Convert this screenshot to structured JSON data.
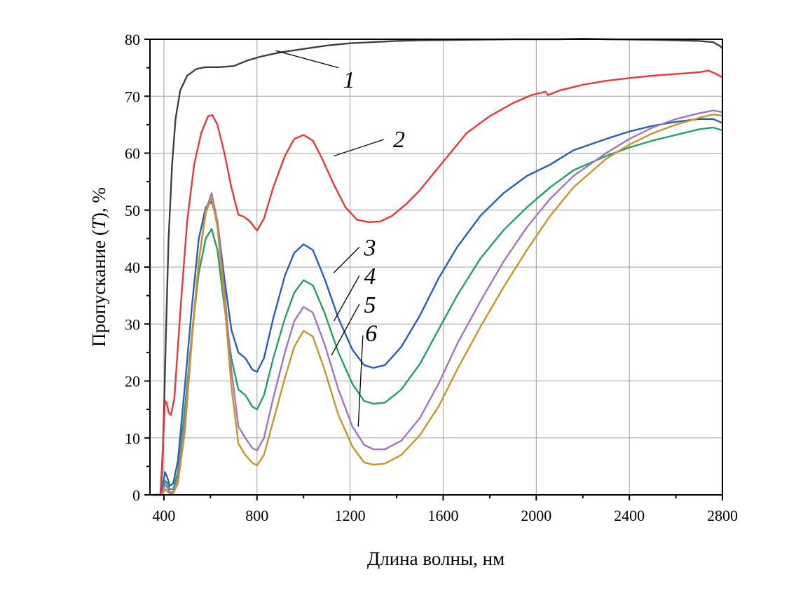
{
  "chart_data": {
    "type": "line",
    "xlabel": "Длина волны, нм",
    "ylabel_parts": [
      "Пропускание (",
      "T",
      "), %"
    ],
    "xlim": [
      340,
      2800
    ],
    "ylim": [
      0,
      80
    ],
    "xticks": [
      400,
      800,
      1200,
      1600,
      2000,
      2400,
      2800
    ],
    "xtick_labels": [
      "400",
      "800",
      "1200",
      "1600",
      "2000",
      "2400",
      "2800"
    ],
    "yticks": [
      0,
      10,
      20,
      30,
      40,
      50,
      60,
      70,
      80
    ],
    "ytick_labels": [
      "0",
      "10",
      "20",
      "30",
      "40",
      "50",
      "60",
      "70",
      "80"
    ],
    "grid": true,
    "series": [
      {
        "name": "1",
        "color": "#404040",
        "label_at": [
          1170,
          73
        ],
        "leader": [
          [
            880,
            78
          ],
          [
            1150,
            75
          ]
        ],
        "points": [
          [
            352,
            0
          ],
          [
            385,
            0
          ],
          [
            392,
            4
          ],
          [
            400,
            14
          ],
          [
            410,
            30
          ],
          [
            420,
            45
          ],
          [
            435,
            58
          ],
          [
            450,
            66
          ],
          [
            470,
            71
          ],
          [
            500,
            73.6
          ],
          [
            540,
            74.8
          ],
          [
            580,
            75.1
          ],
          [
            640,
            75.1
          ],
          [
            700,
            75.3
          ],
          [
            760,
            76.3
          ],
          [
            820,
            77
          ],
          [
            900,
            77.7
          ],
          [
            1000,
            78.3
          ],
          [
            1100,
            78.9
          ],
          [
            1200,
            79.3
          ],
          [
            1300,
            79.5
          ],
          [
            1400,
            79.7
          ],
          [
            1500,
            79.8
          ],
          [
            1700,
            79.9
          ],
          [
            1900,
            80
          ],
          [
            2100,
            80
          ],
          [
            2200,
            80.1
          ],
          [
            2300,
            80
          ],
          [
            2500,
            79.9
          ],
          [
            2600,
            79.8
          ],
          [
            2700,
            79.7
          ],
          [
            2760,
            79.5
          ],
          [
            2790,
            78.8
          ],
          [
            2800,
            78.4
          ]
        ]
      },
      {
        "name": "2",
        "color": "#e8383b",
        "label_at": [
          1385,
          62.5
        ],
        "leader": [
          [
            1130,
            59.5
          ],
          [
            1345,
            62.4
          ]
        ],
        "points": [
          [
            352,
            0
          ],
          [
            385,
            0
          ],
          [
            395,
            8
          ],
          [
            405,
            16.5
          ],
          [
            412,
            16.2
          ],
          [
            420,
            14.5
          ],
          [
            430,
            14
          ],
          [
            445,
            17
          ],
          [
            470,
            32
          ],
          [
            500,
            48
          ],
          [
            530,
            58
          ],
          [
            560,
            63.5
          ],
          [
            590,
            66.5
          ],
          [
            608,
            66.7
          ],
          [
            630,
            65
          ],
          [
            660,
            60
          ],
          [
            690,
            54
          ],
          [
            720,
            49.2
          ],
          [
            745,
            48.8
          ],
          [
            770,
            48
          ],
          [
            800,
            46.4
          ],
          [
            830,
            48.5
          ],
          [
            870,
            54
          ],
          [
            920,
            59.5
          ],
          [
            960,
            62.5
          ],
          [
            1000,
            63.2
          ],
          [
            1040,
            62.2
          ],
          [
            1080,
            59
          ],
          [
            1130,
            54.5
          ],
          [
            1180,
            50.5
          ],
          [
            1230,
            48.3
          ],
          [
            1280,
            47.9
          ],
          [
            1330,
            48
          ],
          [
            1380,
            49
          ],
          [
            1440,
            51
          ],
          [
            1500,
            53.5
          ],
          [
            1560,
            56.5
          ],
          [
            1620,
            59.5
          ],
          [
            1700,
            63.5
          ],
          [
            1800,
            66.5
          ],
          [
            1900,
            68.8
          ],
          [
            1980,
            70.2
          ],
          [
            2040,
            70.8
          ],
          [
            2050,
            70.2
          ],
          [
            2100,
            71
          ],
          [
            2200,
            72
          ],
          [
            2300,
            72.7
          ],
          [
            2400,
            73.2
          ],
          [
            2500,
            73.6
          ],
          [
            2600,
            73.9
          ],
          [
            2700,
            74.2
          ],
          [
            2740,
            74.5
          ],
          [
            2770,
            74
          ],
          [
            2800,
            73.3
          ]
        ]
      },
      {
        "name": "3",
        "color": "#2a5fb2",
        "label_at": [
          1260,
          43.5
        ],
        "leader": [
          [
            1130,
            39
          ],
          [
            1240,
            43.5
          ]
        ],
        "points": [
          [
            352,
            0
          ],
          [
            390,
            0
          ],
          [
            398,
            2.5
          ],
          [
            405,
            4
          ],
          [
            415,
            3
          ],
          [
            425,
            1.6
          ],
          [
            440,
            2
          ],
          [
            460,
            6
          ],
          [
            490,
            19
          ],
          [
            520,
            33
          ],
          [
            550,
            45
          ],
          [
            580,
            50.5
          ],
          [
            605,
            51.5
          ],
          [
            630,
            48
          ],
          [
            660,
            38
          ],
          [
            690,
            29
          ],
          [
            720,
            25
          ],
          [
            750,
            24
          ],
          [
            780,
            22
          ],
          [
            800,
            21.6
          ],
          [
            830,
            24
          ],
          [
            870,
            31
          ],
          [
            920,
            38.5
          ],
          [
            960,
            42.5
          ],
          [
            1000,
            44
          ],
          [
            1040,
            43
          ],
          [
            1090,
            38
          ],
          [
            1150,
            31
          ],
          [
            1210,
            25.5
          ],
          [
            1260,
            22.8
          ],
          [
            1300,
            22.3
          ],
          [
            1350,
            22.8
          ],
          [
            1420,
            26
          ],
          [
            1500,
            31.5
          ],
          [
            1580,
            38
          ],
          [
            1660,
            43.5
          ],
          [
            1760,
            49
          ],
          [
            1860,
            53
          ],
          [
            1960,
            56
          ],
          [
            2060,
            58
          ],
          [
            2160,
            60.5
          ],
          [
            2300,
            62.5
          ],
          [
            2400,
            63.8
          ],
          [
            2500,
            64.8
          ],
          [
            2600,
            65.5
          ],
          [
            2700,
            66
          ],
          [
            2760,
            66
          ],
          [
            2800,
            65.3
          ]
        ]
      },
      {
        "name": "4",
        "color": "#22a163",
        "label_at": [
          1260,
          38.5
        ],
        "leader": [
          [
            1130,
            30.5
          ],
          [
            1240,
            38.5
          ]
        ],
        "points": [
          [
            352,
            0
          ],
          [
            390,
            0
          ],
          [
            398,
            1.5
          ],
          [
            405,
            2.5
          ],
          [
            415,
            2
          ],
          [
            425,
            1
          ],
          [
            440,
            1
          ],
          [
            460,
            4
          ],
          [
            490,
            15
          ],
          [
            520,
            28
          ],
          [
            550,
            39
          ],
          [
            580,
            45
          ],
          [
            605,
            46.7
          ],
          [
            630,
            43
          ],
          [
            660,
            33
          ],
          [
            690,
            24
          ],
          [
            720,
            18.5
          ],
          [
            750,
            17.5
          ],
          [
            780,
            15.5
          ],
          [
            800,
            15
          ],
          [
            830,
            17.5
          ],
          [
            870,
            24
          ],
          [
            920,
            31
          ],
          [
            960,
            35.5
          ],
          [
            1000,
            37.7
          ],
          [
            1040,
            36.8
          ],
          [
            1090,
            32
          ],
          [
            1150,
            25
          ],
          [
            1210,
            19.5
          ],
          [
            1260,
            16.5
          ],
          [
            1300,
            16
          ],
          [
            1350,
            16.2
          ],
          [
            1420,
            18.5
          ],
          [
            1500,
            23
          ],
          [
            1580,
            29
          ],
          [
            1660,
            35
          ],
          [
            1760,
            41.5
          ],
          [
            1860,
            46.5
          ],
          [
            1960,
            50.5
          ],
          [
            2060,
            54
          ],
          [
            2160,
            57
          ],
          [
            2300,
            59.5
          ],
          [
            2400,
            61
          ],
          [
            2500,
            62.2
          ],
          [
            2600,
            63.2
          ],
          [
            2700,
            64.2
          ],
          [
            2760,
            64.5
          ],
          [
            2800,
            64
          ]
        ]
      },
      {
        "name": "5",
        "color": "#9f75c4",
        "label_at": [
          1260,
          33.5
        ],
        "leader": [
          [
            1120,
            24.5
          ],
          [
            1240,
            33.5
          ]
        ],
        "points": [
          [
            352,
            0
          ],
          [
            390,
            0
          ],
          [
            398,
            1
          ],
          [
            405,
            2
          ],
          [
            415,
            1.2
          ],
          [
            425,
            0.5
          ],
          [
            440,
            0.5
          ],
          [
            460,
            3
          ],
          [
            490,
            13
          ],
          [
            520,
            28
          ],
          [
            550,
            41
          ],
          [
            580,
            50
          ],
          [
            605,
            53
          ],
          [
            630,
            48
          ],
          [
            660,
            36
          ],
          [
            690,
            22
          ],
          [
            720,
            12
          ],
          [
            750,
            10
          ],
          [
            780,
            8.2
          ],
          [
            800,
            7.8
          ],
          [
            830,
            10
          ],
          [
            870,
            17
          ],
          [
            920,
            25
          ],
          [
            960,
            30.5
          ],
          [
            1000,
            33
          ],
          [
            1040,
            32
          ],
          [
            1090,
            26.5
          ],
          [
            1150,
            18.5
          ],
          [
            1210,
            12
          ],
          [
            1260,
            8.8
          ],
          [
            1300,
            8
          ],
          [
            1350,
            8
          ],
          [
            1420,
            9.5
          ],
          [
            1500,
            13.5
          ],
          [
            1580,
            19.5
          ],
          [
            1660,
            26.5
          ],
          [
            1760,
            34
          ],
          [
            1860,
            41
          ],
          [
            1960,
            47
          ],
          [
            2060,
            52
          ],
          [
            2160,
            56
          ],
          [
            2300,
            60
          ],
          [
            2400,
            62.5
          ],
          [
            2500,
            64.5
          ],
          [
            2600,
            66
          ],
          [
            2700,
            67
          ],
          [
            2760,
            67.5
          ],
          [
            2800,
            67.2
          ]
        ]
      },
      {
        "name": "6",
        "color": "#c9952a",
        "label_at": [
          1265,
          28.5
        ],
        "leader": [
          [
            1235,
            12
          ],
          [
            1255,
            28
          ]
        ],
        "points": [
          [
            352,
            0
          ],
          [
            390,
            0
          ],
          [
            398,
            0.5
          ],
          [
            405,
            1
          ],
          [
            415,
            0.6
          ],
          [
            425,
            0.2
          ],
          [
            440,
            0.3
          ],
          [
            460,
            2
          ],
          [
            490,
            11
          ],
          [
            520,
            27
          ],
          [
            550,
            41
          ],
          [
            580,
            49.5
          ],
          [
            605,
            52.3
          ],
          [
            630,
            47
          ],
          [
            660,
            34
          ],
          [
            690,
            19
          ],
          [
            720,
            9
          ],
          [
            750,
            7
          ],
          [
            780,
            5.6
          ],
          [
            800,
            5.2
          ],
          [
            830,
            7
          ],
          [
            870,
            13
          ],
          [
            920,
            20.5
          ],
          [
            960,
            26
          ],
          [
            1000,
            28.8
          ],
          [
            1040,
            27.8
          ],
          [
            1090,
            22
          ],
          [
            1150,
            14
          ],
          [
            1210,
            8.5
          ],
          [
            1260,
            5.7
          ],
          [
            1300,
            5.3
          ],
          [
            1350,
            5.5
          ],
          [
            1420,
            7
          ],
          [
            1500,
            10.5
          ],
          [
            1580,
            15.5
          ],
          [
            1660,
            22
          ],
          [
            1760,
            29.5
          ],
          [
            1860,
            36.5
          ],
          [
            1960,
            43
          ],
          [
            2060,
            49
          ],
          [
            2160,
            54
          ],
          [
            2300,
            59
          ],
          [
            2400,
            61.5
          ],
          [
            2500,
            63.5
          ],
          [
            2600,
            65
          ],
          [
            2700,
            66.2
          ],
          [
            2760,
            66.8
          ],
          [
            2800,
            66.6
          ]
        ]
      }
    ]
  }
}
